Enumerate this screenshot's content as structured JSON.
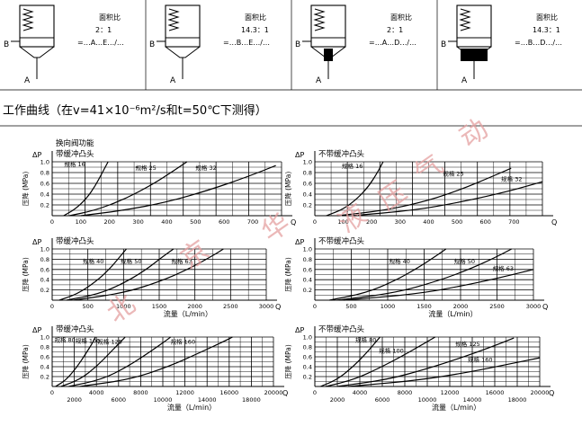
{
  "symbols": [
    {
      "ratio_label": "面积比",
      "ratio": "2：1",
      "code": "=…A…E…/…",
      "port_b": "B",
      "port_a": "A",
      "style": "open"
    },
    {
      "ratio_label": "面积比",
      "ratio": "14.3：1",
      "code": "=…B…E…/…",
      "port_b": "B",
      "port_a": "A",
      "style": "open"
    },
    {
      "ratio_label": "面积比",
      "ratio": "2：1",
      "code": "=…A…D…/…",
      "port_b": "B",
      "port_a": "A",
      "style": "cushion"
    },
    {
      "ratio_label": "面积比",
      "ratio": "14.3：1",
      "code": "=…B…D…/…",
      "port_b": "B",
      "port_a": "A",
      "style": "cushion"
    }
  ],
  "section_title": "工作曲线（在v=41×10⁻⁶m²/s和t=50℃下测得）",
  "watermark": [
    "北",
    "京",
    "华",
    "液",
    "压",
    "气",
    "动"
  ],
  "chart_data": [
    {
      "type": "line",
      "position": "top-left",
      "heading": "换向阀功能",
      "subtitle": "带缓冲凸头",
      "ylabel_symbol": "ΔP",
      "ylabel_unit": "(MPa)",
      "ylabel_cn": "压降",
      "xlabel_symbol": "Q",
      "x_ticks": [
        0,
        100,
        200,
        300,
        400,
        500,
        600,
        700
      ],
      "y_ticks": [
        0.2,
        0.4,
        0.6,
        0.8,
        1.0
      ],
      "xlim": [
        0,
        800
      ],
      "ylim": [
        0,
        1.0
      ],
      "series": [
        {
          "name": "规格 16",
          "points": [
            [
              40,
              0
            ],
            [
              80,
              0.12
            ],
            [
              120,
              0.32
            ],
            [
              150,
              0.55
            ],
            [
              175,
              0.8
            ],
            [
              195,
              1.0
            ]
          ],
          "label_at": [
            42,
            0.92
          ]
        },
        {
          "name": "规格 25",
          "points": [
            [
              60,
              0
            ],
            [
              150,
              0.1
            ],
            [
              250,
              0.3
            ],
            [
              350,
              0.58
            ],
            [
              420,
              0.82
            ],
            [
              470,
              1.0
            ]
          ],
          "label_at": [
            290,
            0.85
          ]
        },
        {
          "name": "规格 32",
          "points": [
            [
              100,
              0
            ],
            [
              250,
              0.1
            ],
            [
              400,
              0.25
            ],
            [
              550,
              0.48
            ],
            [
              680,
              0.72
            ],
            [
              780,
              0.93
            ]
          ],
          "label_at": [
            500,
            0.85
          ]
        }
      ]
    },
    {
      "type": "line",
      "position": "top-right",
      "heading": "",
      "subtitle": "不带缓冲凸头",
      "ylabel_symbol": "ΔP",
      "ylabel_unit": "(MPa)",
      "ylabel_cn": "压降",
      "xlabel_symbol": "Q",
      "x_ticks": [
        0,
        100,
        200,
        300,
        400,
        500,
        600,
        700
      ],
      "y_ticks": [
        0.2,
        0.4,
        0.6,
        0.8,
        1.0
      ],
      "xlim": [
        0,
        800
      ],
      "ylim": [
        0,
        1.0
      ],
      "series": [
        {
          "name": "规格 16",
          "points": [
            [
              40,
              0
            ],
            [
              100,
              0.12
            ],
            [
              150,
              0.32
            ],
            [
              190,
              0.55
            ],
            [
              220,
              0.8
            ],
            [
              240,
              1.0
            ]
          ],
          "label_at": [
            95,
            0.88
          ]
        },
        {
          "name": "规格 25",
          "points": [
            [
              80,
              0
            ],
            [
              250,
              0.1
            ],
            [
              400,
              0.28
            ],
            [
              520,
              0.5
            ],
            [
              620,
              0.72
            ],
            [
              690,
              0.88
            ]
          ],
          "label_at": [
            450,
            0.74
          ]
        },
        {
          "name": "规格 32",
          "points": [
            [
              130,
              0
            ],
            [
              350,
              0.1
            ],
            [
              520,
              0.26
            ],
            [
              680,
              0.45
            ],
            [
              800,
              0.63
            ]
          ],
          "label_at": [
            655,
            0.64
          ]
        }
      ]
    },
    {
      "type": "line",
      "position": "middle-left",
      "heading": "",
      "subtitle": "带缓冲凸头",
      "ylabel_symbol": "ΔP",
      "ylabel_unit": "(MPa)",
      "ylabel_cn": "压降",
      "xlabel_symbol": "Q",
      "xlabel": "流量（L/min）",
      "x_ticks": [
        0,
        500,
        1000,
        1500,
        2000,
        2500,
        3000
      ],
      "y_ticks": [
        0.2,
        0.4,
        0.6,
        0.8,
        1.0
      ],
      "xlim": [
        0,
        3000
      ],
      "ylim": [
        0,
        1.0
      ],
      "series": [
        {
          "name": "规格 40",
          "points": [
            [
              100,
              0
            ],
            [
              350,
              0.12
            ],
            [
              600,
              0.35
            ],
            [
              800,
              0.6
            ],
            [
              950,
              0.85
            ],
            [
              1040,
              1.0
            ]
          ],
          "label_at": [
            430,
            0.72
          ]
        },
        {
          "name": "规格 50",
          "points": [
            [
              200,
              0
            ],
            [
              650,
              0.12
            ],
            [
              1000,
              0.33
            ],
            [
              1300,
              0.58
            ],
            [
              1550,
              0.85
            ],
            [
              1700,
              1.0
            ]
          ],
          "label_at": [
            960,
            0.72
          ]
        },
        {
          "name": "规格 63",
          "points": [
            [
              300,
              0
            ],
            [
              1000,
              0.14
            ],
            [
              1500,
              0.36
            ],
            [
              1900,
              0.6
            ],
            [
              2250,
              0.87
            ],
            [
              2400,
              1.0
            ]
          ],
          "label_at": [
            1670,
            0.72
          ]
        }
      ]
    },
    {
      "type": "line",
      "position": "middle-right",
      "heading": "",
      "subtitle": "不带缓冲凸头",
      "ylabel_symbol": "ΔP",
      "ylabel_unit": "(MPa)",
      "ylabel_cn": "压降",
      "xlabel_symbol": "Q",
      "xlabel": "流量（L/min）",
      "x_ticks": [
        0,
        500,
        1000,
        1500,
        2000,
        2500,
        3000
      ],
      "y_ticks": [
        0.2,
        0.4,
        0.6,
        0.8,
        1.0
      ],
      "xlim": [
        0,
        3000
      ],
      "ylim": [
        0,
        1.0
      ],
      "series": [
        {
          "name": "规格 40",
          "points": [
            [
              200,
              0
            ],
            [
              700,
              0.14
            ],
            [
              1100,
              0.38
            ],
            [
              1400,
              0.62
            ],
            [
              1650,
              0.85
            ],
            [
              1800,
              1.0
            ]
          ],
          "label_at": [
            1020,
            0.72
          ]
        },
        {
          "name": "规格 50",
          "points": [
            [
              300,
              0
            ],
            [
              1100,
              0.14
            ],
            [
              1700,
              0.38
            ],
            [
              2150,
              0.62
            ],
            [
              2500,
              0.85
            ],
            [
              2700,
              1.0
            ]
          ],
          "label_at": [
            1910,
            0.72
          ]
        },
        {
          "name": "规格 63",
          "points": [
            [
              400,
              0
            ],
            [
              1400,
              0.12
            ],
            [
              2100,
              0.3
            ],
            [
              2600,
              0.46
            ],
            [
              3000,
              0.6
            ]
          ],
          "label_at": [
            2440,
            0.58
          ]
        }
      ]
    },
    {
      "type": "line",
      "position": "bottom-left",
      "heading": "",
      "subtitle": "带缓冲凸头",
      "ylabel_symbol": "ΔP",
      "ylabel_unit": "(MPa)",
      "ylabel_cn": "压降",
      "xlabel_symbol": "Q",
      "xlabel": "流量（L/min）",
      "x_ticks": [
        0,
        2000,
        4000,
        6000,
        8000,
        10000,
        12000,
        14000,
        16000,
        18000,
        20000
      ],
      "y_ticks": [
        0.2,
        0.4,
        0.6,
        0.8,
        1.0
      ],
      "xlim": [
        0,
        20000
      ],
      "ylim": [
        0,
        1.0
      ],
      "series": [
        {
          "name": "规格 80",
          "points": [
            [
              300,
              0
            ],
            [
              1200,
              0.12
            ],
            [
              2200,
              0.38
            ],
            [
              3000,
              0.65
            ],
            [
              3700,
              0.9
            ],
            [
              3900,
              1.0
            ]
          ],
          "label_at": [
            200,
            0.9
          ]
        },
        {
          "name": "规格 100",
          "points": [
            [
              800,
              0
            ],
            [
              2500,
              0.14
            ],
            [
              4000,
              0.4
            ],
            [
              5300,
              0.7
            ],
            [
              6300,
              0.93
            ],
            [
              6600,
              1.0
            ]
          ],
          "label_at": [
            2100,
            0.88
          ]
        },
        {
          "name": "规格 125",
          "points": [
            [
              1500,
              0
            ],
            [
              4500,
              0.14
            ],
            [
              6800,
              0.4
            ],
            [
              8700,
              0.68
            ],
            [
              10300,
              0.93
            ],
            [
              10700,
              1.0
            ]
          ],
          "label_at": [
            4100,
            0.86
          ]
        },
        {
          "name": "规格 160",
          "points": [
            [
              2500,
              0
            ],
            [
              7000,
              0.14
            ],
            [
              10500,
              0.4
            ],
            [
              13300,
              0.68
            ],
            [
              15600,
              0.92
            ],
            [
              16300,
              1.0
            ]
          ],
          "label_at": [
            10700,
            0.86
          ]
        }
      ]
    },
    {
      "type": "line",
      "position": "bottom-right",
      "heading": "",
      "subtitle": "不带缓冲凸头",
      "ylabel_symbol": "ΔP",
      "ylabel_unit": "(MPa)",
      "ylabel_cn": "压降",
      "xlabel_symbol": "Q",
      "xlabel": "流量（L/min）",
      "x_ticks": [
        0,
        2000,
        4000,
        6000,
        8000,
        10000,
        12000,
        14000,
        16000,
        18000,
        20000
      ],
      "y_ticks": [
        0.2,
        0.4,
        0.6,
        0.8,
        1.0
      ],
      "xlim": [
        0,
        20000
      ],
      "ylim": [
        0,
        1.0
      ],
      "series": [
        {
          "name": "规格 80",
          "points": [
            [
              500,
              0
            ],
            [
              2000,
              0.14
            ],
            [
              3400,
              0.4
            ],
            [
              4600,
              0.68
            ],
            [
              5500,
              0.92
            ],
            [
              5800,
              1.0
            ]
          ],
          "label_at": [
            3600,
            0.9
          ]
        },
        {
          "name": "规格 100",
          "points": [
            [
              1000,
              0
            ],
            [
              3500,
              0.14
            ],
            [
              5800,
              0.38
            ],
            [
              7800,
              0.62
            ],
            [
              9500,
              0.84
            ],
            [
              10700,
              1.0
            ]
          ],
          "label_at": [
            5700,
            0.68
          ]
        },
        {
          "name": "规格 125",
          "points": [
            [
              2000,
              0
            ],
            [
              6500,
              0.14
            ],
            [
              10000,
              0.36
            ],
            [
              13000,
              0.58
            ],
            [
              15700,
              0.8
            ],
            [
              17700,
              0.98
            ]
          ],
          "label_at": [
            12500,
            0.82
          ]
        },
        {
          "name": "规格 160",
          "points": [
            [
              3000,
              0
            ],
            [
              9000,
              0.12
            ],
            [
              13500,
              0.28
            ],
            [
              17000,
              0.44
            ],
            [
              20000,
              0.58
            ]
          ],
          "label_at": [
            13600,
            0.5
          ]
        }
      ]
    }
  ]
}
